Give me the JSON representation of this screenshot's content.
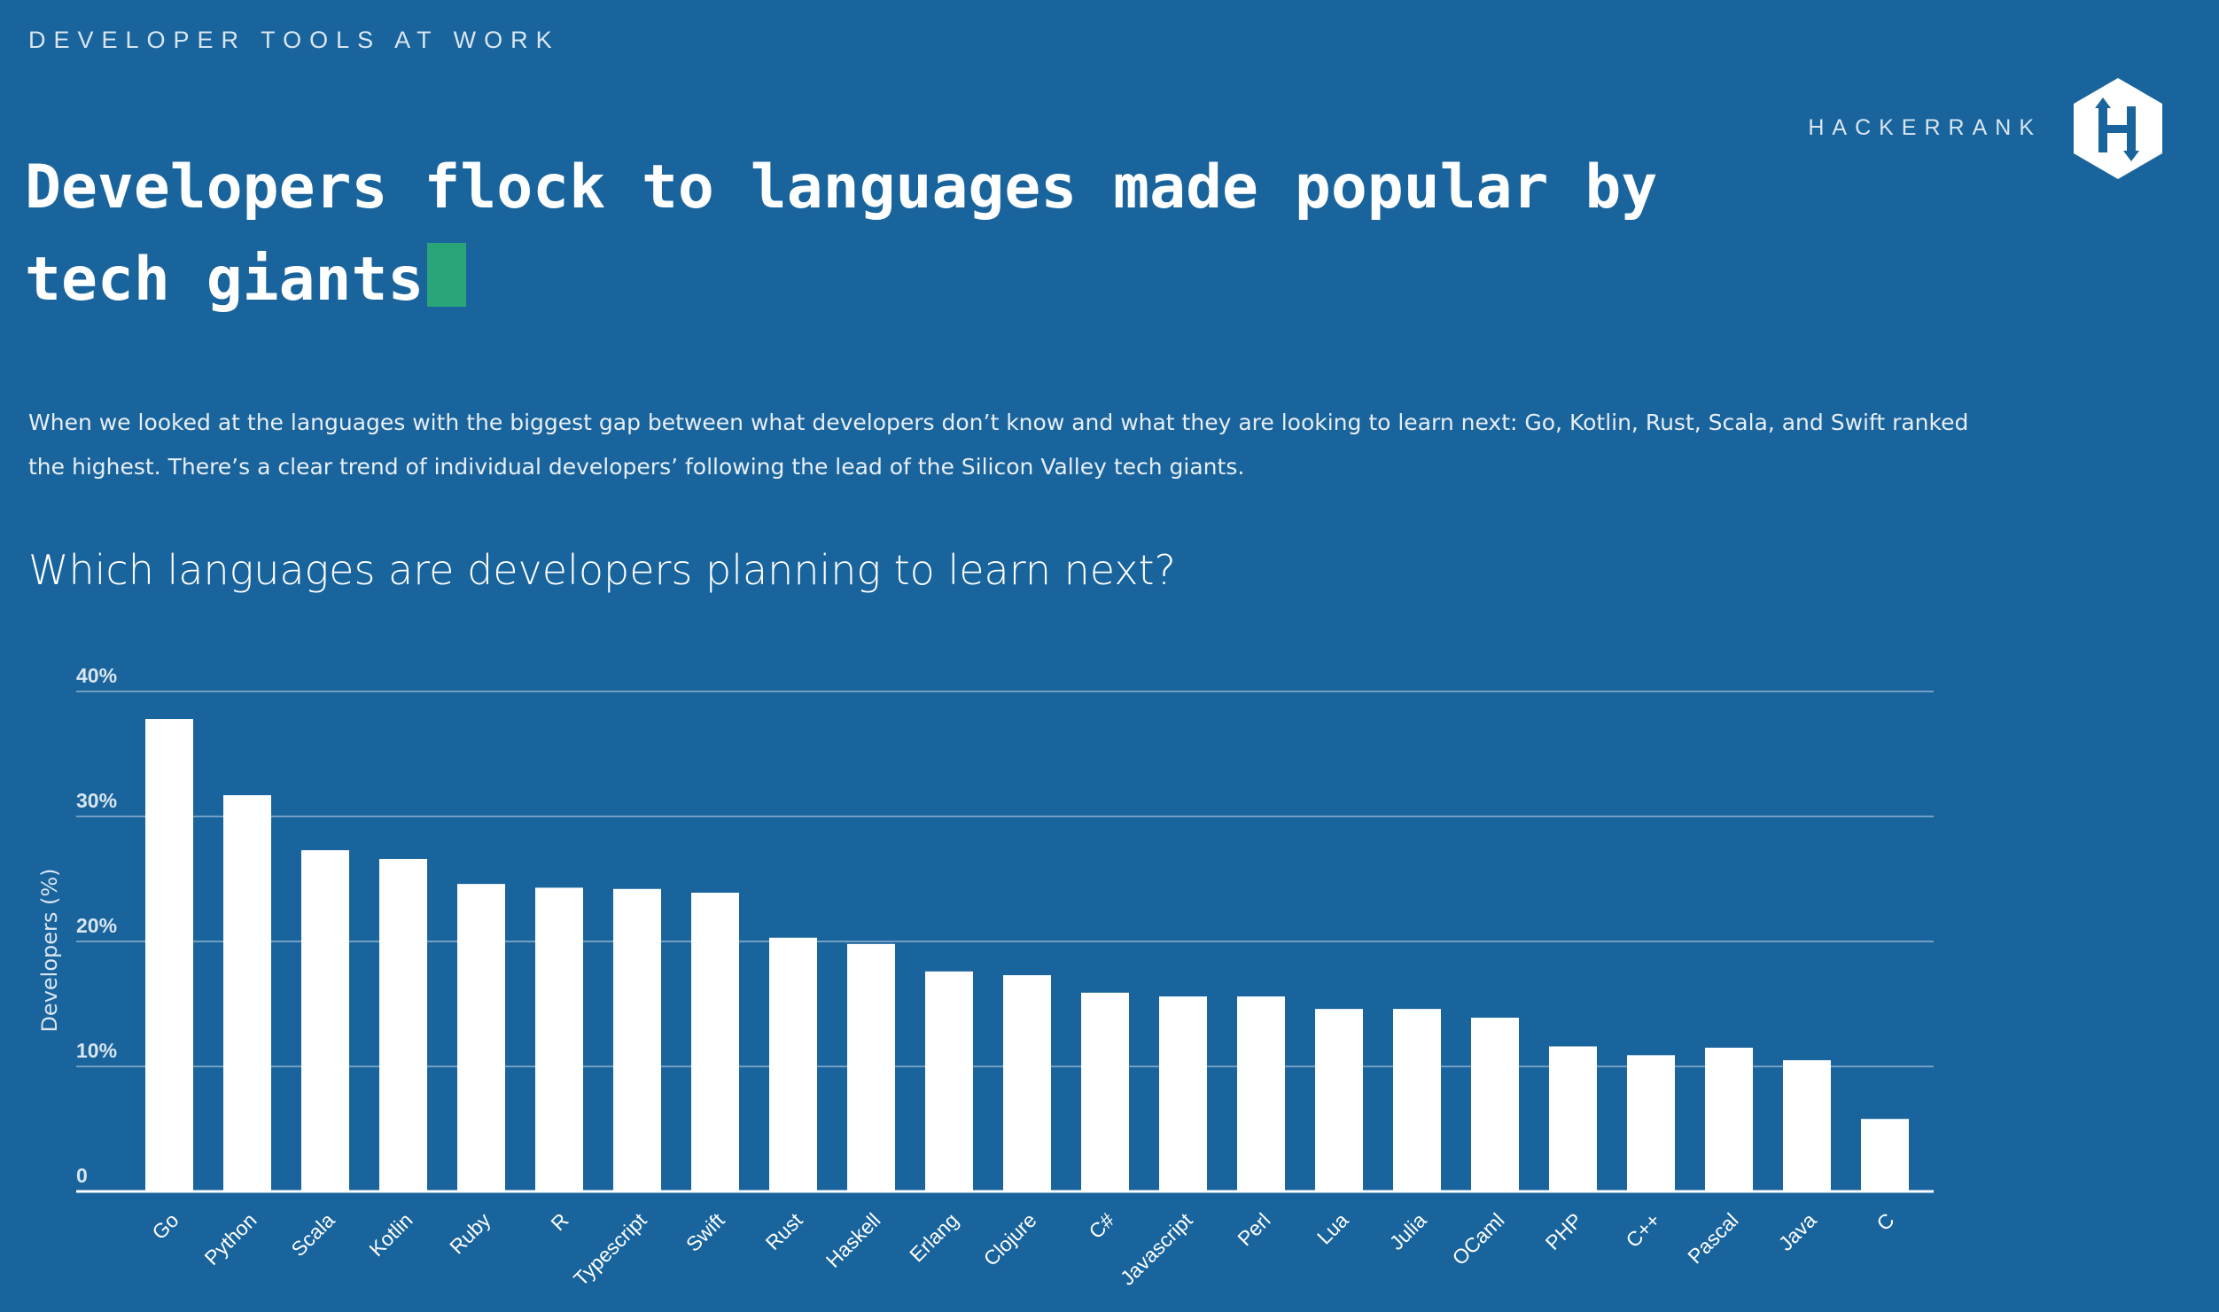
{
  "header": {
    "kicker": "DEVELOPER TOOLS AT WORK",
    "brand": "HACKERRANK",
    "logo_icon": "hackerrank-hexagon-icon",
    "title": "Developers flock to languages made popular by tech giants",
    "description": "When we looked at the languages with the biggest gap between what developers don’t know and what they are looking to learn next: Go, Kotlin, Rust, Scala, and Swift ranked the highest. There’s a clear trend of individual developers’ following the lead of the Silicon Valley tech giants.",
    "subtitle": "Which languages are developers planning to learn next?"
  },
  "colors": {
    "background": "#19649c",
    "bar": "#ffffff",
    "accent": "#2aa57a"
  },
  "chart_data": {
    "type": "bar",
    "categories": [
      "Go",
      "Python",
      "Scala",
      "Kotlin",
      "Ruby",
      "R",
      "Typescript",
      "Swift",
      "Rust",
      "Haskell",
      "Erlang",
      "Clojure",
      "C#",
      "Javascript",
      "Perl",
      "Lua",
      "Julia",
      "OCaml",
      "PHP",
      "C++",
      "Pascal",
      "Java",
      "C"
    ],
    "values": [
      37.8,
      31.7,
      27.3,
      26.6,
      24.6,
      24.3,
      24.2,
      23.9,
      20.3,
      19.8,
      17.6,
      17.3,
      15.9,
      15.6,
      15.6,
      14.6,
      14.6,
      13.9,
      11.6,
      10.9,
      11.5,
      10.5,
      5.8
    ],
    "ylabel": "Developers (%)",
    "ylim": [
      0,
      40
    ],
    "yticks": [
      0,
      10,
      20,
      30,
      40
    ],
    "ytick_labels": [
      "0",
      "10%",
      "20%",
      "30%",
      "40%"
    ],
    "grid": true,
    "legend": false
  }
}
